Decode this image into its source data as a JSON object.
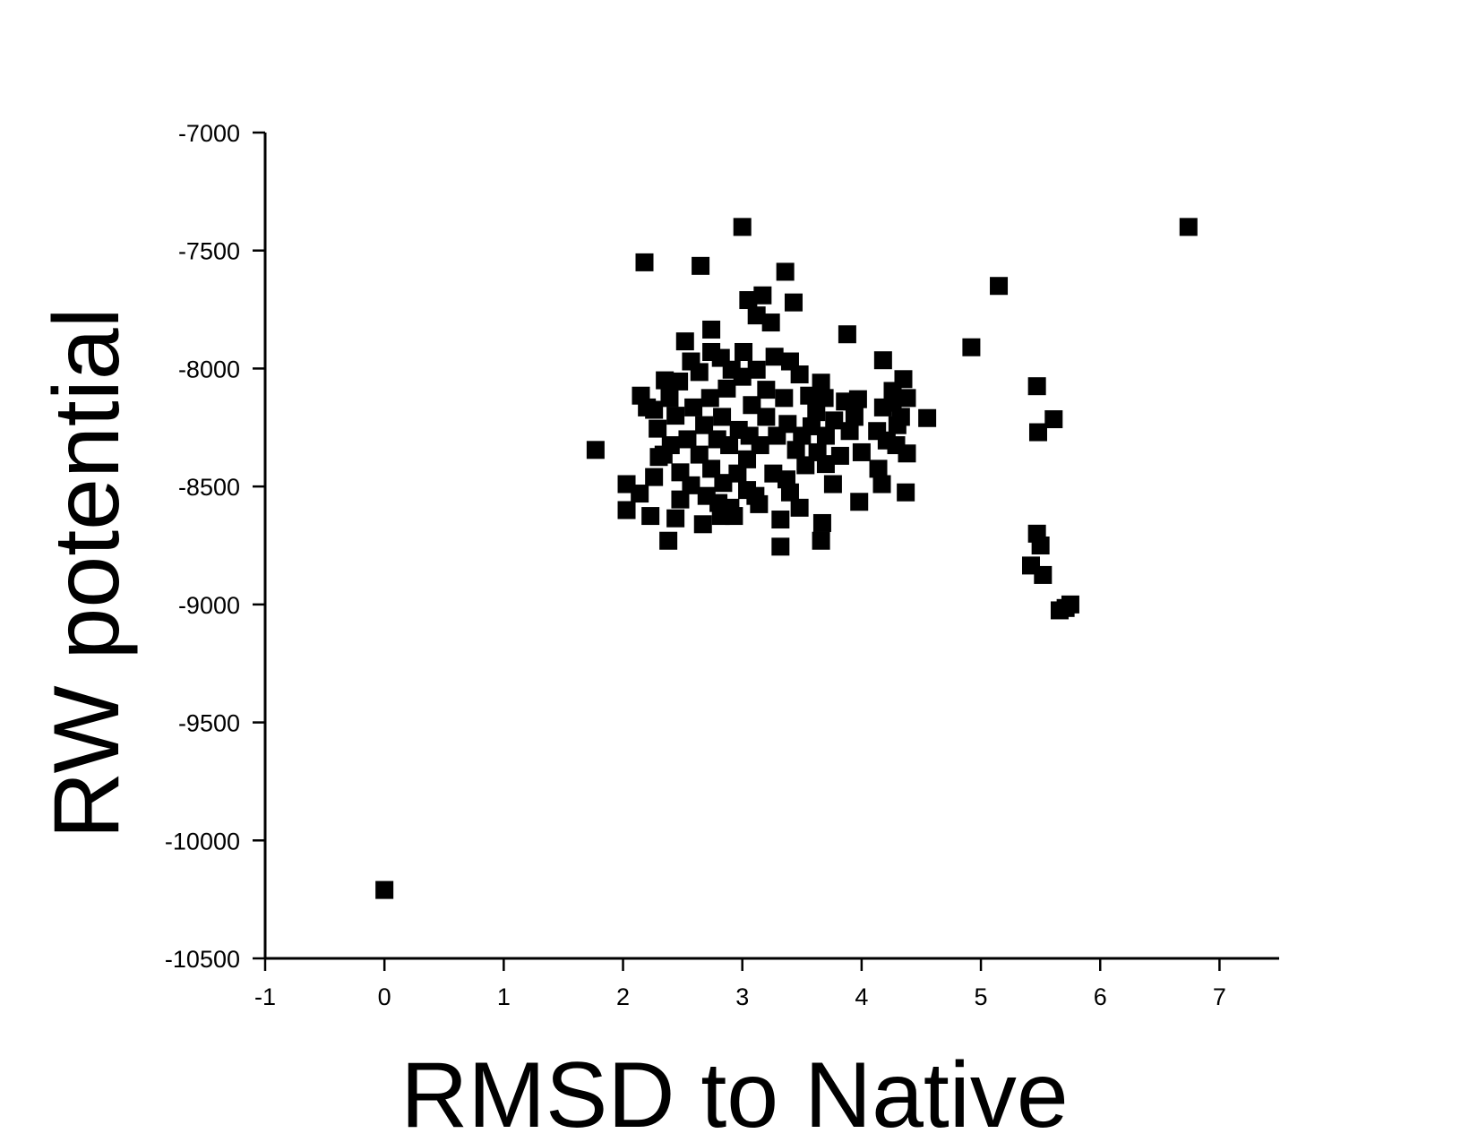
{
  "chart_data": {
    "type": "scatter",
    "x_label": "RMSD to Native",
    "y_label": "RW potential",
    "xlim": [
      -1,
      7.5
    ],
    "xticks": [
      -1,
      0,
      1,
      2,
      3,
      4,
      5,
      6,
      7
    ],
    "ylim": [
      -10500,
      -7000
    ],
    "yticks": [
      -10500,
      -10000,
      -9500,
      -9000,
      -8500,
      -8000,
      -7500,
      -7000
    ],
    "color": "#000000",
    "marker": "square",
    "grid": false,
    "x": [
      0,
      3.0,
      6.74,
      2.18,
      2.65,
      3.36,
      5.15,
      3.43,
      3.05,
      3.17,
      3.12,
      3.24,
      3.88,
      4.92,
      2.74,
      4.18,
      5.47,
      5.61,
      5.48,
      4.55,
      4.35,
      1.77,
      5.47,
      5.5,
      5.42,
      5.52,
      5.75,
      5.66,
      5.71,
      3.32,
      3.66,
      2.38,
      2.23,
      2.03,
      2.67,
      3.67,
      3.98,
      4.37,
      2.03,
      2.14,
      3.32,
      2.93,
      4.38,
      4.0,
      4.17,
      4.14,
      3.76,
      3.7,
      3.82,
      4.13,
      4.3,
      4.38,
      4.26,
      3.97,
      3.86,
      3.66,
      3.48,
      3.27,
      3.4,
      3.01,
      2.82,
      2.52,
      2.64,
      2.47,
      2.35,
      2.15,
      2.26,
      2.29,
      2.4,
      2.3,
      2.26,
      2.48,
      2.48,
      2.7,
      2.9,
      3.11,
      3.14,
      3.4,
      3.48,
      3.37,
      3.53,
      3.63,
      3.5,
      3.38,
      3.62,
      3.77,
      3.69,
      3.56,
      3.35,
      3.2,
      3.08,
      3.2,
      3.29,
      3.15,
      3.04,
      2.96,
      2.84,
      2.74,
      2.64,
      2.54,
      2.68,
      2.83,
      2.97,
      3.06,
      2.89,
      2.79,
      2.59,
      2.73,
      2.87,
      3.0,
      3.12,
      2.91,
      2.74,
      2.57,
      2.39,
      2.44,
      2.2,
      2.34,
      2.57,
      2.8,
      3.04,
      3.26,
      3.45,
      3.58,
      3.7,
      3.9,
      3.94,
      4.26,
      4.33,
      4.21,
      4.29,
      4.18,
      2.44,
      2.82
    ],
    "y": [
      -10210,
      -7400,
      -7400,
      -7550,
      -7565,
      -7590,
      -7650,
      -7720,
      -7710,
      -7690,
      -7775,
      -7805,
      -7855,
      -7910,
      -7835,
      -7965,
      -8075,
      -8215,
      -8270,
      -8210,
      -8045,
      -8345,
      -8700,
      -8750,
      -8835,
      -8875,
      -9000,
      -9025,
      -9015,
      -8755,
      -8730,
      -8730,
      -8625,
      -8600,
      -8660,
      -8655,
      -8565,
      -8525,
      -8490,
      -8530,
      -8640,
      -8625,
      -8360,
      -8355,
      -8490,
      -8425,
      -8490,
      -8405,
      -8370,
      -8265,
      -8240,
      -8125,
      -8095,
      -8130,
      -8140,
      -8060,
      -8025,
      -7950,
      -7970,
      -7930,
      -7955,
      -7885,
      -8015,
      -8055,
      -8050,
      -8115,
      -8175,
      -8255,
      -8325,
      -8375,
      -8460,
      -8440,
      -8555,
      -8540,
      -8590,
      -8540,
      -8575,
      -8525,
      -8590,
      -8470,
      -8410,
      -8355,
      -8285,
      -8235,
      -8185,
      -8220,
      -8125,
      -8115,
      -8125,
      -8090,
      -8155,
      -8205,
      -8285,
      -8325,
      -8385,
      -8445,
      -8485,
      -8425,
      -8365,
      -8300,
      -8240,
      -8205,
      -8260,
      -8285,
      -8325,
      -8300,
      -8165,
      -8125,
      -8085,
      -8035,
      -8005,
      -8005,
      -7930,
      -7970,
      -8125,
      -8200,
      -8165,
      -8365,
      -8495,
      -8570,
      -8515,
      -8445,
      -8345,
      -8245,
      -8285,
      -8265,
      -8205,
      -8145,
      -8205,
      -8305,
      -8325,
      -8165,
      -8635,
      -8625
    ]
  }
}
